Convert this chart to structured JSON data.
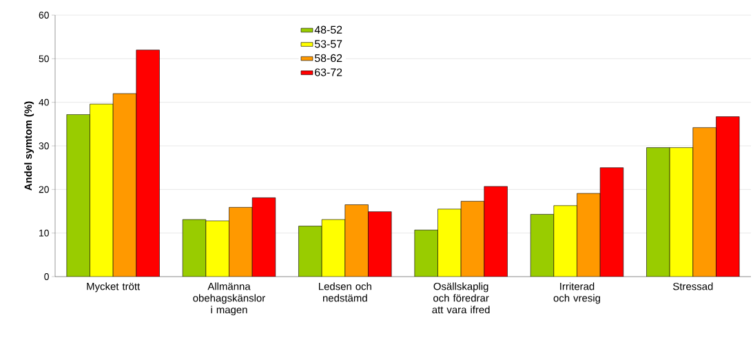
{
  "chart_data": {
    "type": "bar",
    "ylabel": "Andel symtom (%)",
    "categories": [
      "Mycket trött",
      "Allmänna obehagskänslor i magen",
      "Ledsen och nedstämd",
      "Osällskaplig och föredrar att vara ifred",
      "Irriterad och vresig",
      "Stressad"
    ],
    "series": [
      {
        "name": "48-52",
        "color": "#99cc00",
        "values": [
          37.2,
          13.1,
          11.6,
          10.7,
          14.3,
          29.6
        ]
      },
      {
        "name": "53-57",
        "color": "#ffff00",
        "values": [
          39.6,
          12.8,
          13.1,
          15.5,
          16.3,
          29.6
        ]
      },
      {
        "name": "58-62",
        "color": "#ff9900",
        "values": [
          42.0,
          15.9,
          16.5,
          17.3,
          19.1,
          34.2
        ]
      },
      {
        "name": "63-72",
        "color": "#ff0000",
        "values": [
          52.0,
          18.1,
          14.9,
          20.7,
          25.0,
          36.7
        ]
      }
    ],
    "ylim": [
      0,
      60
    ],
    "yticks": [
      0,
      10,
      20,
      30,
      40,
      50,
      60
    ],
    "grid": "y",
    "legend": "top"
  }
}
